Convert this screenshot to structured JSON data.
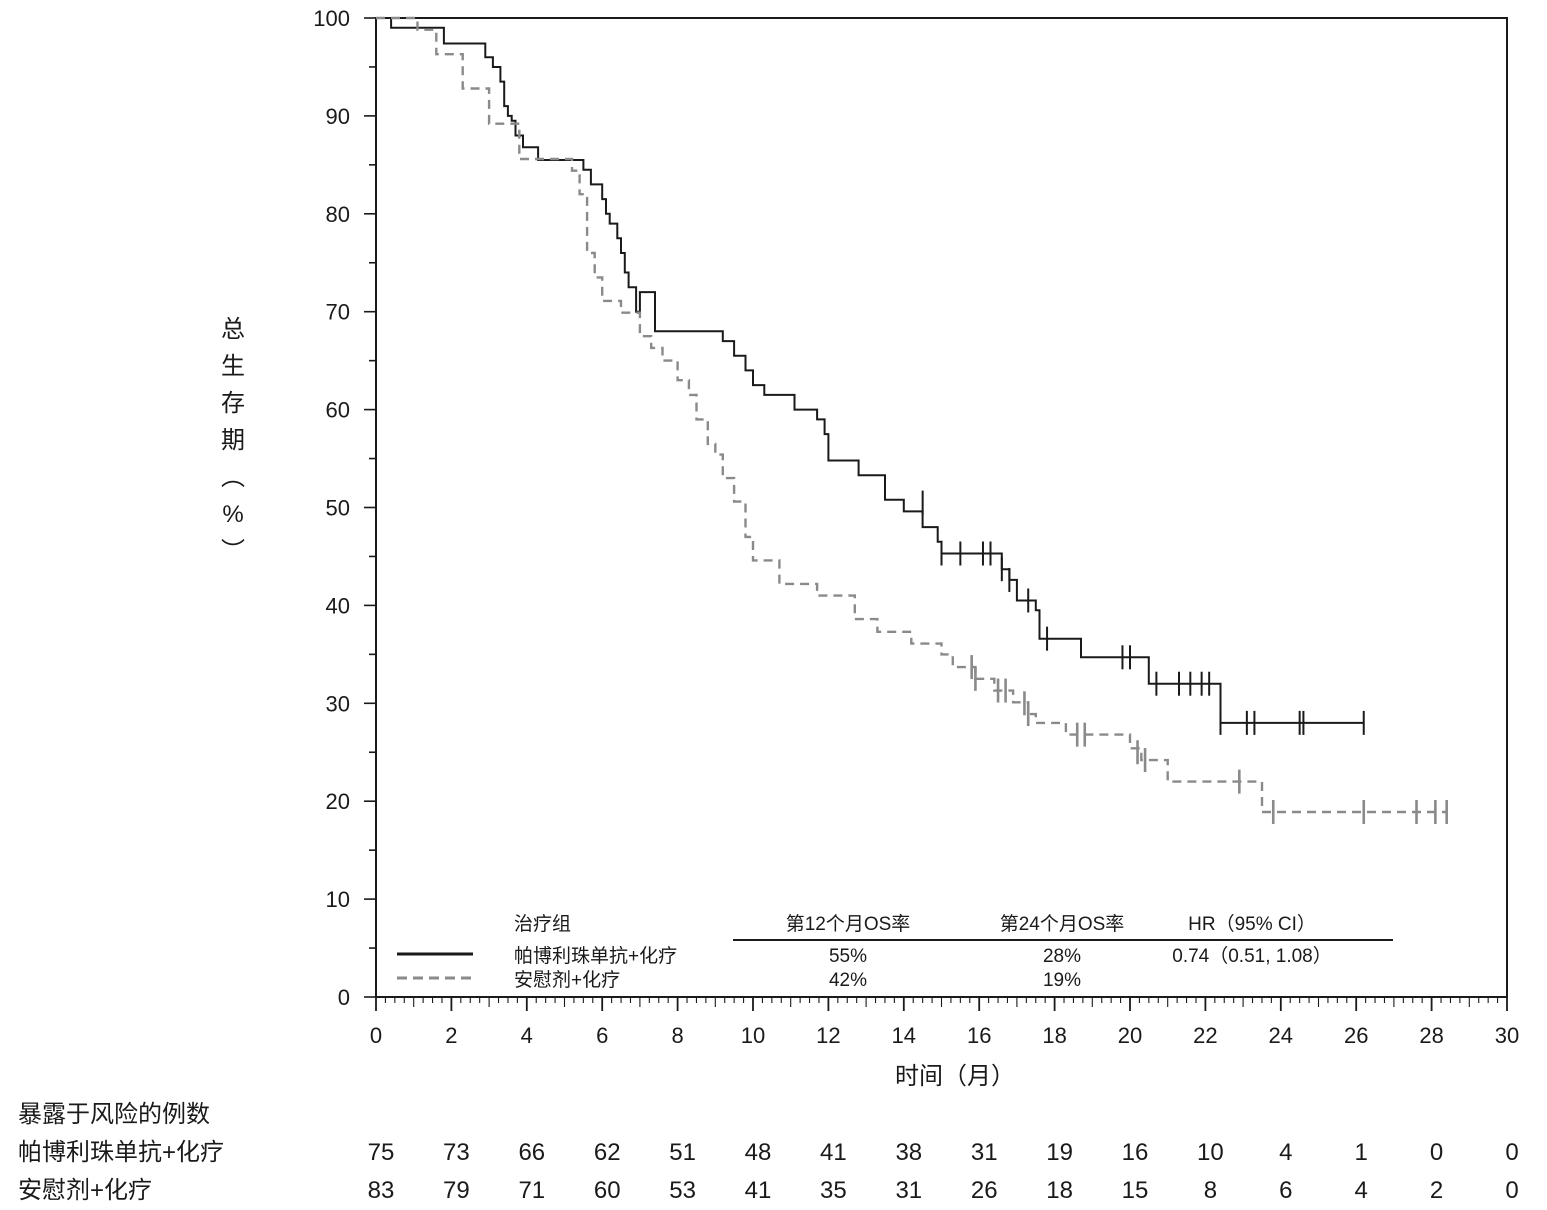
{
  "chart_data": {
    "type": "line",
    "ylabel_chars": [
      "总",
      "生",
      "存",
      "期",
      "（",
      "%",
      "）"
    ],
    "xlabel": "时间（月）",
    "xlim": [
      0,
      30
    ],
    "ylim": [
      0,
      100
    ],
    "x_ticks": [
      0,
      2,
      4,
      6,
      8,
      10,
      12,
      14,
      16,
      18,
      20,
      22,
      24,
      26,
      28,
      30
    ],
    "y_ticks": [
      0,
      10,
      20,
      30,
      40,
      50,
      60,
      70,
      80,
      90,
      100
    ],
    "grid": false,
    "legend": {
      "headers": {
        "group": "治疗组",
        "os12": "第12个月OS率",
        "os24": "第24个月OS率",
        "hr": "HR（95% CI）"
      },
      "rows": [
        {
          "label": "帕博利珠单抗+化疗",
          "os12": "55%",
          "os24": "28%",
          "hr": "0.74（0.51, 1.08）"
        },
        {
          "label": "安慰剂+化疗",
          "os12": "42%",
          "os24": "19%",
          "hr": ""
        }
      ]
    },
    "series": [
      {
        "name": "帕博利珠单抗+化疗",
        "color": "#1a1a1a",
        "dash": "solid",
        "points": [
          [
            0,
            100
          ],
          [
            0.4,
            99
          ],
          [
            1.8,
            97.4
          ],
          [
            2.9,
            96
          ],
          [
            3.1,
            95
          ],
          [
            3.3,
            93.5
          ],
          [
            3.4,
            91
          ],
          [
            3.5,
            90
          ],
          [
            3.6,
            89.5
          ],
          [
            3.7,
            88
          ],
          [
            3.9,
            86.8
          ],
          [
            4.3,
            85.5
          ],
          [
            5.5,
            84.5
          ],
          [
            5.7,
            83
          ],
          [
            6.0,
            81.5
          ],
          [
            6.1,
            80
          ],
          [
            6.2,
            79
          ],
          [
            6.4,
            77.5
          ],
          [
            6.5,
            76
          ],
          [
            6.6,
            74
          ],
          [
            6.7,
            72.5
          ],
          [
            6.9,
            70
          ],
          [
            7.0,
            72
          ],
          [
            7.4,
            68
          ],
          [
            9.2,
            67
          ],
          [
            9.5,
            65.5
          ],
          [
            9.8,
            64
          ],
          [
            10.0,
            62.5
          ],
          [
            10.3,
            61.5
          ],
          [
            11.1,
            60
          ],
          [
            11.7,
            59
          ],
          [
            11.9,
            57.5
          ],
          [
            12.0,
            54.8
          ],
          [
            12.8,
            53.3
          ],
          [
            13.5,
            50.8
          ],
          [
            14.0,
            49.6
          ],
          [
            14.5,
            48
          ],
          [
            14.9,
            46.5
          ],
          [
            15.0,
            45.3
          ],
          [
            16.6,
            43.7
          ],
          [
            16.8,
            42.6
          ],
          [
            17.0,
            40.5
          ],
          [
            17.5,
            39.5
          ],
          [
            17.6,
            36.6
          ],
          [
            18.7,
            34.7
          ],
          [
            20.5,
            32
          ],
          [
            22.4,
            28
          ],
          [
            26.2,
            28
          ]
        ],
        "censors": [
          [
            14.5,
            50.5
          ],
          [
            15.0,
            45.3
          ],
          [
            15.5,
            45.3
          ],
          [
            16.1,
            45.3
          ],
          [
            16.3,
            45.3
          ],
          [
            16.6,
            43.7
          ],
          [
            16.8,
            42.6
          ],
          [
            17.3,
            40.5
          ],
          [
            17.8,
            36.6
          ],
          [
            19.8,
            34.7
          ],
          [
            20.0,
            34.7
          ],
          [
            20.7,
            32
          ],
          [
            21.3,
            32
          ],
          [
            21.6,
            32
          ],
          [
            21.9,
            32
          ],
          [
            22.1,
            32
          ],
          [
            22.4,
            28
          ],
          [
            23.1,
            28
          ],
          [
            23.3,
            28
          ],
          [
            24.5,
            28
          ],
          [
            24.6,
            28
          ],
          [
            26.2,
            28
          ]
        ]
      },
      {
        "name": "安慰剂+化疗",
        "color": "#8a8a8a",
        "dash": "dashed",
        "points": [
          [
            0,
            100
          ],
          [
            1.1,
            98.8
          ],
          [
            1.6,
            96.3
          ],
          [
            2.3,
            92.8
          ],
          [
            3.0,
            89.2
          ],
          [
            3.8,
            85.6
          ],
          [
            5.2,
            84.4
          ],
          [
            5.4,
            82
          ],
          [
            5.6,
            76
          ],
          [
            5.8,
            73.5
          ],
          [
            6.0,
            71.1
          ],
          [
            6.5,
            69.9
          ],
          [
            7.0,
            67.5
          ],
          [
            7.3,
            66.3
          ],
          [
            7.6,
            65
          ],
          [
            8.0,
            63
          ],
          [
            8.3,
            61.5
          ],
          [
            8.5,
            59
          ],
          [
            8.8,
            56.5
          ],
          [
            9.0,
            55.4
          ],
          [
            9.2,
            53
          ],
          [
            9.5,
            50.6
          ],
          [
            9.8,
            47
          ],
          [
            10.0,
            44.6
          ],
          [
            10.7,
            42.2
          ],
          [
            11.7,
            41
          ],
          [
            12.7,
            38.6
          ],
          [
            13.3,
            37.3
          ],
          [
            14.2,
            36.1
          ],
          [
            15.0,
            35
          ],
          [
            15.3,
            33.7
          ],
          [
            15.9,
            32.5
          ],
          [
            16.4,
            31.3
          ],
          [
            16.9,
            30.1
          ],
          [
            17.3,
            28.9
          ],
          [
            17.5,
            28
          ],
          [
            18.3,
            26.8
          ],
          [
            20.0,
            25.4
          ],
          [
            20.3,
            24.2
          ],
          [
            21.0,
            22
          ],
          [
            22.8,
            22
          ],
          [
            23.5,
            18.9
          ],
          [
            28.4,
            18.9
          ]
        ],
        "censors": [
          [
            15.8,
            33.7
          ],
          [
            15.9,
            32.5
          ],
          [
            16.5,
            31.3
          ],
          [
            16.7,
            31.3
          ],
          [
            17.2,
            30
          ],
          [
            17.3,
            28.9
          ],
          [
            18.6,
            26.8
          ],
          [
            18.8,
            26.8
          ],
          [
            20.2,
            25
          ],
          [
            20.4,
            24.2
          ],
          [
            22.9,
            22
          ],
          [
            23.8,
            18.9
          ],
          [
            26.2,
            18.9
          ],
          [
            27.6,
            18.9
          ],
          [
            28.1,
            18.9
          ],
          [
            28.4,
            18.9
          ]
        ]
      }
    ]
  },
  "risk_table": {
    "title": "暴露于风险的例数",
    "rows": [
      {
        "label": "帕博利珠单抗+化疗",
        "values": [
          "75",
          "73",
          "66",
          "62",
          "51",
          "48",
          "41",
          "38",
          "31",
          "19",
          "16",
          "10",
          "4",
          "1",
          "0",
          "0"
        ]
      },
      {
        "label": "安慰剂+化疗",
        "values": [
          "83",
          "79",
          "71",
          "60",
          "53",
          "41",
          "35",
          "31",
          "26",
          "18",
          "15",
          "8",
          "6",
          "4",
          "2",
          "0"
        ]
      }
    ]
  }
}
